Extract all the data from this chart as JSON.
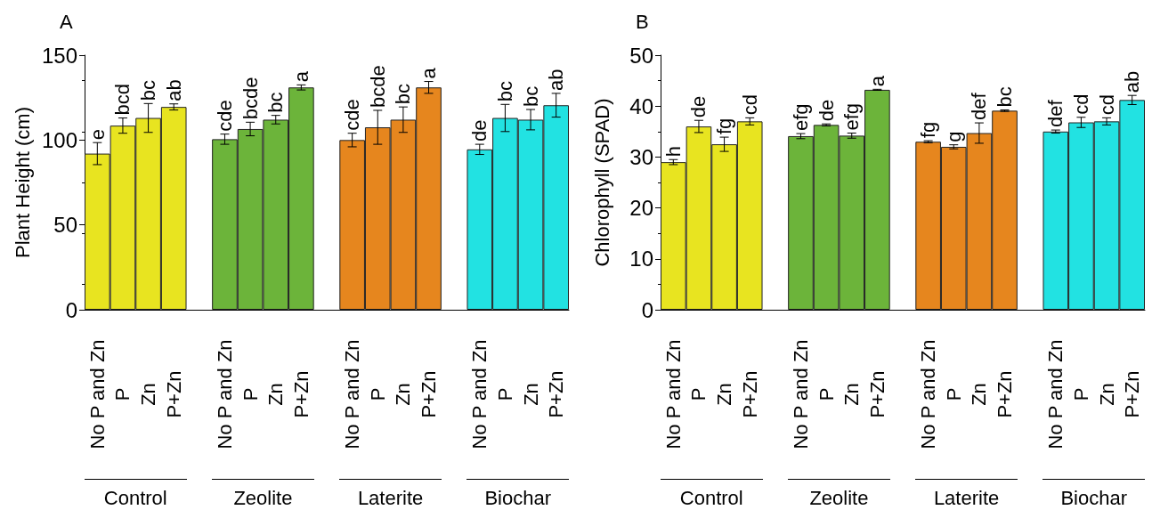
{
  "chart_data": [
    {
      "type": "bar",
      "title": "A",
      "ylabel": "Plant Height (cm)",
      "categories": [
        "No P and Zn",
        "P",
        "Zn",
        "P+Zn",
        null,
        "No P and Zn",
        "P",
        "Zn",
        "P+Zn",
        null,
        "No P and Zn",
        "P",
        "Zn",
        "P+Zn",
        null,
        "No P and Zn",
        "P",
        "Zn",
        "P+Zn"
      ],
      "values": [
        92,
        108.5,
        113,
        119.5,
        null,
        100.5,
        106.5,
        112,
        131,
        null,
        100,
        107.5,
        112,
        131,
        null,
        94.5,
        113,
        112,
        120.5
      ],
      "errors": [
        6.5,
        4.5,
        8.5,
        1.8,
        null,
        3,
        4,
        2.5,
        1.5,
        null,
        4,
        10,
        7.5,
        3.5,
        null,
        3,
        8,
        6,
        7
      ],
      "value_labels": [
        "e",
        "bcd",
        "bc",
        "ab",
        null,
        "cde",
        "bcde",
        "bc",
        "a",
        null,
        "cde",
        "bcde",
        "bc",
        "a",
        null,
        "de",
        "bc",
        "bc",
        "ab"
      ],
      "colors": [
        "#e8e420",
        "#e8e420",
        "#e8e420",
        "#e8e420",
        "#ffffff",
        "#6cb43a",
        "#6cb43a",
        "#6cb43a",
        "#6cb43a",
        "#ffffff",
        "#e6861e",
        "#e6861e",
        "#e6861e",
        "#e6861e",
        "#ffffff",
        "#22e2e2",
        "#22e2e2",
        "#22e2e2",
        "#22e2e2"
      ],
      "ylim": [
        0,
        150
      ],
      "yticks": [
        0,
        50,
        100,
        150
      ],
      "grid": false,
      "annotations": [
        "Control",
        "Zeolite",
        "Laterite",
        "Biochar"
      ]
    },
    {
      "type": "bar",
      "title": "B",
      "ylabel": "Chlorophyll (SPAD)",
      "categories": [
        "No P and Zn",
        "P",
        "Zn",
        "P+Zn",
        null,
        "No P and Zn",
        "P",
        "Zn",
        "P+Zn",
        null,
        "No P and Zn",
        "P",
        "Zn",
        "P+Zn",
        null,
        "No P and Zn",
        "P",
        "Zn",
        "P+Zn"
      ],
      "values": [
        29,
        36,
        32.5,
        37,
        null,
        34.1,
        36.3,
        34.2,
        43.2,
        null,
        33,
        32,
        34.7,
        39.1,
        null,
        35,
        36.8,
        37,
        41.2
      ],
      "errors": [
        0.5,
        1.2,
        1.4,
        0.7,
        null,
        0.5,
        0.2,
        0.5,
        0.1,
        null,
        0.2,
        0.4,
        2,
        0.15,
        null,
        0.3,
        1,
        0.7,
        0.9
      ],
      "value_labels": [
        "h",
        "de",
        "fg",
        "cd",
        null,
        "efg",
        "de",
        "efg",
        "a",
        null,
        "fg",
        "g",
        "def",
        "bc",
        null,
        "def",
        "cd",
        "cd",
        "ab"
      ],
      "colors": [
        "#e8e420",
        "#e8e420",
        "#e8e420",
        "#e8e420",
        "#ffffff",
        "#6cb43a",
        "#6cb43a",
        "#6cb43a",
        "#6cb43a",
        "#ffffff",
        "#e6861e",
        "#e6861e",
        "#e6861e",
        "#e6861e",
        "#ffffff",
        "#22e2e2",
        "#22e2e2",
        "#22e2e2",
        "#22e2e2"
      ],
      "ylim": [
        0,
        50
      ],
      "yticks": [
        0,
        10,
        20,
        30,
        40,
        50
      ],
      "grid": false,
      "annotations": [
        "Control",
        "Zeolite",
        "Laterite",
        "Biochar"
      ]
    }
  ]
}
